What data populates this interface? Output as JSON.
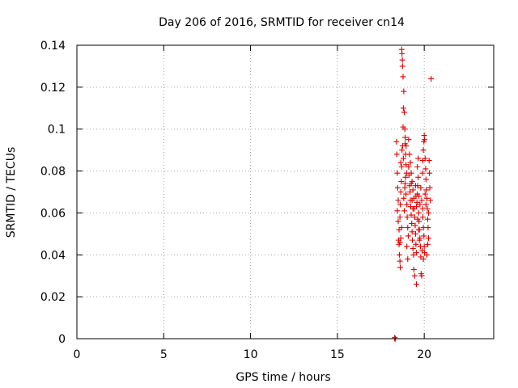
{
  "chart_data": {
    "type": "scatter",
    "title": "Day 206 of 2016, SRMTID for receiver cn14",
    "xlabel": "GPS time / hours",
    "ylabel": "SRMTID / TECUs",
    "xlim": [
      0,
      24
    ],
    "ylim": [
      0,
      0.14
    ],
    "xticks": [
      0,
      5,
      10,
      15,
      20
    ],
    "xtick_labels": [
      "0",
      "5",
      "10",
      "15",
      "20"
    ],
    "yticks": [
      0,
      0.02,
      0.04,
      0.06,
      0.08,
      0.1,
      0.12,
      0.14
    ],
    "ytick_labels": [
      "0",
      "0.02",
      "0.04",
      "0.06",
      "0.08",
      "0.1",
      "0.12",
      "0.14"
    ],
    "grid": true,
    "marker": "plus",
    "color": "#e00000",
    "series": [
      {
        "name": "cn14",
        "points": [
          [
            18.3,
            0.0
          ],
          [
            18.32,
            0.0
          ],
          [
            18.34,
            0.0
          ],
          [
            18.3,
            0.0005
          ],
          [
            18.4,
            0.094
          ],
          [
            18.42,
            0.088
          ],
          [
            18.45,
            0.079
          ],
          [
            18.47,
            0.072
          ],
          [
            18.5,
            0.066
          ],
          [
            18.45,
            0.061
          ],
          [
            18.5,
            0.056
          ],
          [
            18.52,
            0.047
          ],
          [
            18.55,
            0.045
          ],
          [
            18.57,
            0.04
          ],
          [
            18.6,
            0.037
          ],
          [
            18.62,
            0.034
          ],
          [
            18.55,
            0.052
          ],
          [
            18.6,
            0.058
          ],
          [
            18.62,
            0.064
          ],
          [
            18.65,
            0.07
          ],
          [
            18.68,
            0.075
          ],
          [
            18.7,
            0.082
          ],
          [
            18.72,
            0.09
          ],
          [
            18.75,
            0.092
          ],
          [
            18.78,
            0.101
          ],
          [
            18.8,
            0.11
          ],
          [
            18.82,
            0.118
          ],
          [
            18.78,
            0.125
          ],
          [
            18.75,
            0.13
          ],
          [
            18.72,
            0.136
          ],
          [
            18.7,
            0.138
          ],
          [
            18.74,
            0.133
          ],
          [
            18.85,
            0.108
          ],
          [
            18.88,
            0.1
          ],
          [
            18.9,
            0.096
          ],
          [
            18.92,
            0.088
          ],
          [
            18.95,
            0.083
          ],
          [
            18.98,
            0.079
          ],
          [
            18.9,
            0.074
          ],
          [
            18.95,
            0.069
          ],
          [
            19.0,
            0.064
          ],
          [
            19.02,
            0.058
          ],
          [
            19.05,
            0.053
          ],
          [
            19.08,
            0.049
          ],
          [
            18.85,
            0.061
          ],
          [
            18.82,
            0.067
          ],
          [
            18.88,
            0.072
          ],
          [
            18.92,
            0.077
          ],
          [
            18.96,
            0.092
          ],
          [
            19.1,
            0.082
          ],
          [
            19.12,
            0.078
          ],
          [
            19.15,
            0.073
          ],
          [
            19.18,
            0.07
          ],
          [
            19.2,
            0.066
          ],
          [
            19.22,
            0.063
          ],
          [
            19.25,
            0.059
          ],
          [
            19.28,
            0.055
          ],
          [
            19.3,
            0.051
          ],
          [
            19.32,
            0.047
          ],
          [
            19.35,
            0.043
          ],
          [
            19.38,
            0.04
          ],
          [
            19.15,
            0.088
          ],
          [
            19.2,
            0.084
          ],
          [
            19.25,
            0.079
          ],
          [
            19.3,
            0.075
          ],
          [
            19.35,
            0.071
          ],
          [
            19.4,
            0.067
          ],
          [
            19.42,
            0.062
          ],
          [
            19.45,
            0.058
          ],
          [
            19.48,
            0.054
          ],
          [
            19.5,
            0.05
          ],
          [
            19.52,
            0.045
          ],
          [
            19.55,
            0.041
          ],
          [
            19.4,
            0.033
          ],
          [
            19.45,
            0.03
          ],
          [
            19.55,
            0.026
          ],
          [
            19.58,
            0.065
          ],
          [
            19.6,
            0.069
          ],
          [
            19.62,
            0.073
          ],
          [
            19.65,
            0.077
          ],
          [
            19.68,
            0.06
          ],
          [
            19.7,
            0.056
          ],
          [
            19.72,
            0.052
          ],
          [
            19.75,
            0.048
          ],
          [
            19.78,
            0.044
          ],
          [
            19.8,
            0.039
          ],
          [
            19.82,
            0.031
          ],
          [
            19.85,
            0.03
          ],
          [
            19.6,
            0.082
          ],
          [
            19.65,
            0.086
          ],
          [
            19.7,
            0.068
          ],
          [
            19.75,
            0.064
          ],
          [
            19.8,
            0.072
          ],
          [
            19.85,
            0.066
          ],
          [
            19.9,
            0.062
          ],
          [
            19.92,
            0.058
          ],
          [
            19.95,
            0.053
          ],
          [
            19.98,
            0.049
          ],
          [
            20.0,
            0.044
          ],
          [
            20.02,
            0.041
          ],
          [
            19.9,
            0.079
          ],
          [
            19.92,
            0.085
          ],
          [
            19.95,
            0.09
          ],
          [
            19.98,
            0.094
          ],
          [
            20.0,
            0.097
          ],
          [
            20.02,
            0.095
          ],
          [
            20.05,
            0.086
          ],
          [
            20.08,
            0.081
          ],
          [
            20.1,
            0.076
          ],
          [
            20.12,
            0.071
          ],
          [
            20.15,
            0.067
          ],
          [
            20.18,
            0.062
          ],
          [
            20.2,
            0.057
          ],
          [
            20.22,
            0.053
          ],
          [
            20.25,
            0.048
          ],
          [
            20.28,
            0.085
          ],
          [
            20.3,
            0.079
          ],
          [
            20.25,
            0.06
          ],
          [
            20.32,
            0.072
          ],
          [
            20.35,
            0.066
          ],
          [
            20.4,
            0.124
          ],
          [
            18.6,
            0.046
          ],
          [
            18.65,
            0.048
          ],
          [
            18.7,
            0.053
          ],
          [
            18.8,
            0.086
          ],
          [
            19.0,
            0.044
          ],
          [
            19.05,
            0.038
          ],
          [
            19.25,
            0.074
          ],
          [
            19.3,
            0.066
          ],
          [
            19.35,
            0.062
          ],
          [
            19.5,
            0.073
          ],
          [
            19.52,
            0.068
          ],
          [
            19.55,
            0.063
          ],
          [
            19.62,
            0.057
          ],
          [
            19.68,
            0.052
          ],
          [
            19.72,
            0.047
          ],
          [
            19.88,
            0.042
          ],
          [
            19.95,
            0.038
          ],
          [
            20.05,
            0.069
          ],
          [
            20.1,
            0.064
          ],
          [
            20.15,
            0.04
          ],
          [
            20.2,
            0.045
          ],
          [
            18.65,
            0.084
          ],
          [
            18.9,
            0.093
          ],
          [
            19.1,
            0.095
          ]
        ]
      }
    ]
  }
}
